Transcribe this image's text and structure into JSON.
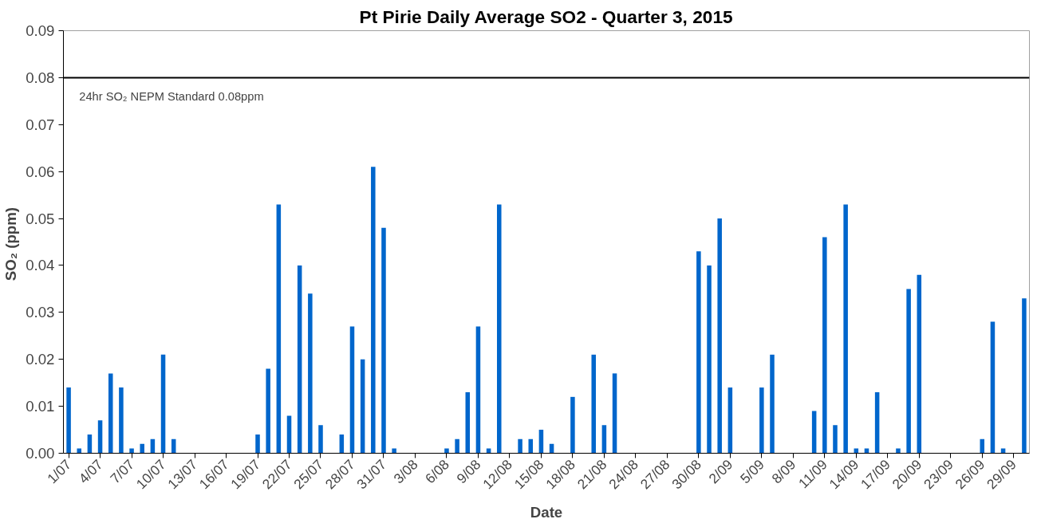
{
  "chart_data": {
    "type": "bar",
    "title": "Pt Pirie Daily Average SO2 - Quarter 3, 2015",
    "xlabel": "Date",
    "ylabel": "SO₂  (ppm)",
    "categories": [
      "1/07",
      null,
      null,
      "4/07",
      null,
      null,
      "7/07",
      null,
      null,
      "10/07",
      null,
      null,
      "13/07",
      null,
      null,
      "16/07",
      null,
      null,
      "19/07",
      null,
      null,
      "22/07",
      null,
      null,
      "25/07",
      null,
      null,
      "28/07",
      null,
      null,
      "31/07",
      null,
      null,
      "3/08",
      null,
      null,
      "6/08",
      null,
      null,
      "9/08",
      null,
      null,
      "12/08",
      null,
      null,
      "15/08",
      null,
      null,
      "18/08",
      null,
      null,
      "21/08",
      null,
      null,
      "24/08",
      null,
      null,
      "27/08",
      null,
      null,
      "30/08",
      null,
      null,
      "2/09",
      null,
      null,
      "5/09",
      null,
      null,
      "8/09",
      null,
      null,
      "11/09",
      null,
      null,
      "14/09",
      null,
      null,
      "17/09",
      null,
      null,
      "20/09",
      null,
      null,
      "23/09",
      null,
      null,
      "26/09",
      null,
      null,
      "29/09",
      null
    ],
    "values": [
      0.014,
      0.001,
      0.004,
      0.007,
      0.017,
      0.014,
      0.001,
      0.002,
      0.003,
      0.021,
      0.003,
      null,
      null,
      null,
      null,
      null,
      null,
      null,
      0.004,
      0.018,
      0.053,
      0.008,
      0.04,
      0.034,
      0.006,
      null,
      0.004,
      0.027,
      0.02,
      0.061,
      0.048,
      0.001,
      null,
      null,
      null,
      null,
      0.001,
      0.003,
      0.013,
      0.027,
      0.001,
      0.053,
      null,
      0.003,
      0.003,
      0.005,
      0.002,
      null,
      0.012,
      null,
      0.021,
      0.006,
      0.017,
      null,
      null,
      null,
      null,
      null,
      null,
      null,
      0.043,
      0.04,
      0.05,
      0.014,
      null,
      null,
      0.014,
      0.021,
      null,
      null,
      null,
      0.009,
      0.046,
      0.006,
      0.053,
      0.001,
      0.001,
      0.013,
      null,
      0.001,
      0.035,
      0.038,
      null,
      null,
      null,
      null,
      null,
      0.003,
      0.028,
      0.001,
      null,
      0.033
    ],
    "color": "#0066cc",
    "ylim": [
      0,
      0.09
    ],
    "yticks": [
      {
        "value": 0,
        "label": "0.00"
      },
      0.01,
      0.02,
      0.03,
      0.04,
      0.05,
      0.06,
      0.07,
      0.08,
      0.09
    ],
    "ref_lines": [
      {
        "axis": "y",
        "value": 0.08,
        "label": "24hr SO₂ NEPM Standard 0.08ppm",
        "color": "#000000"
      }
    ],
    "grid": false
  }
}
